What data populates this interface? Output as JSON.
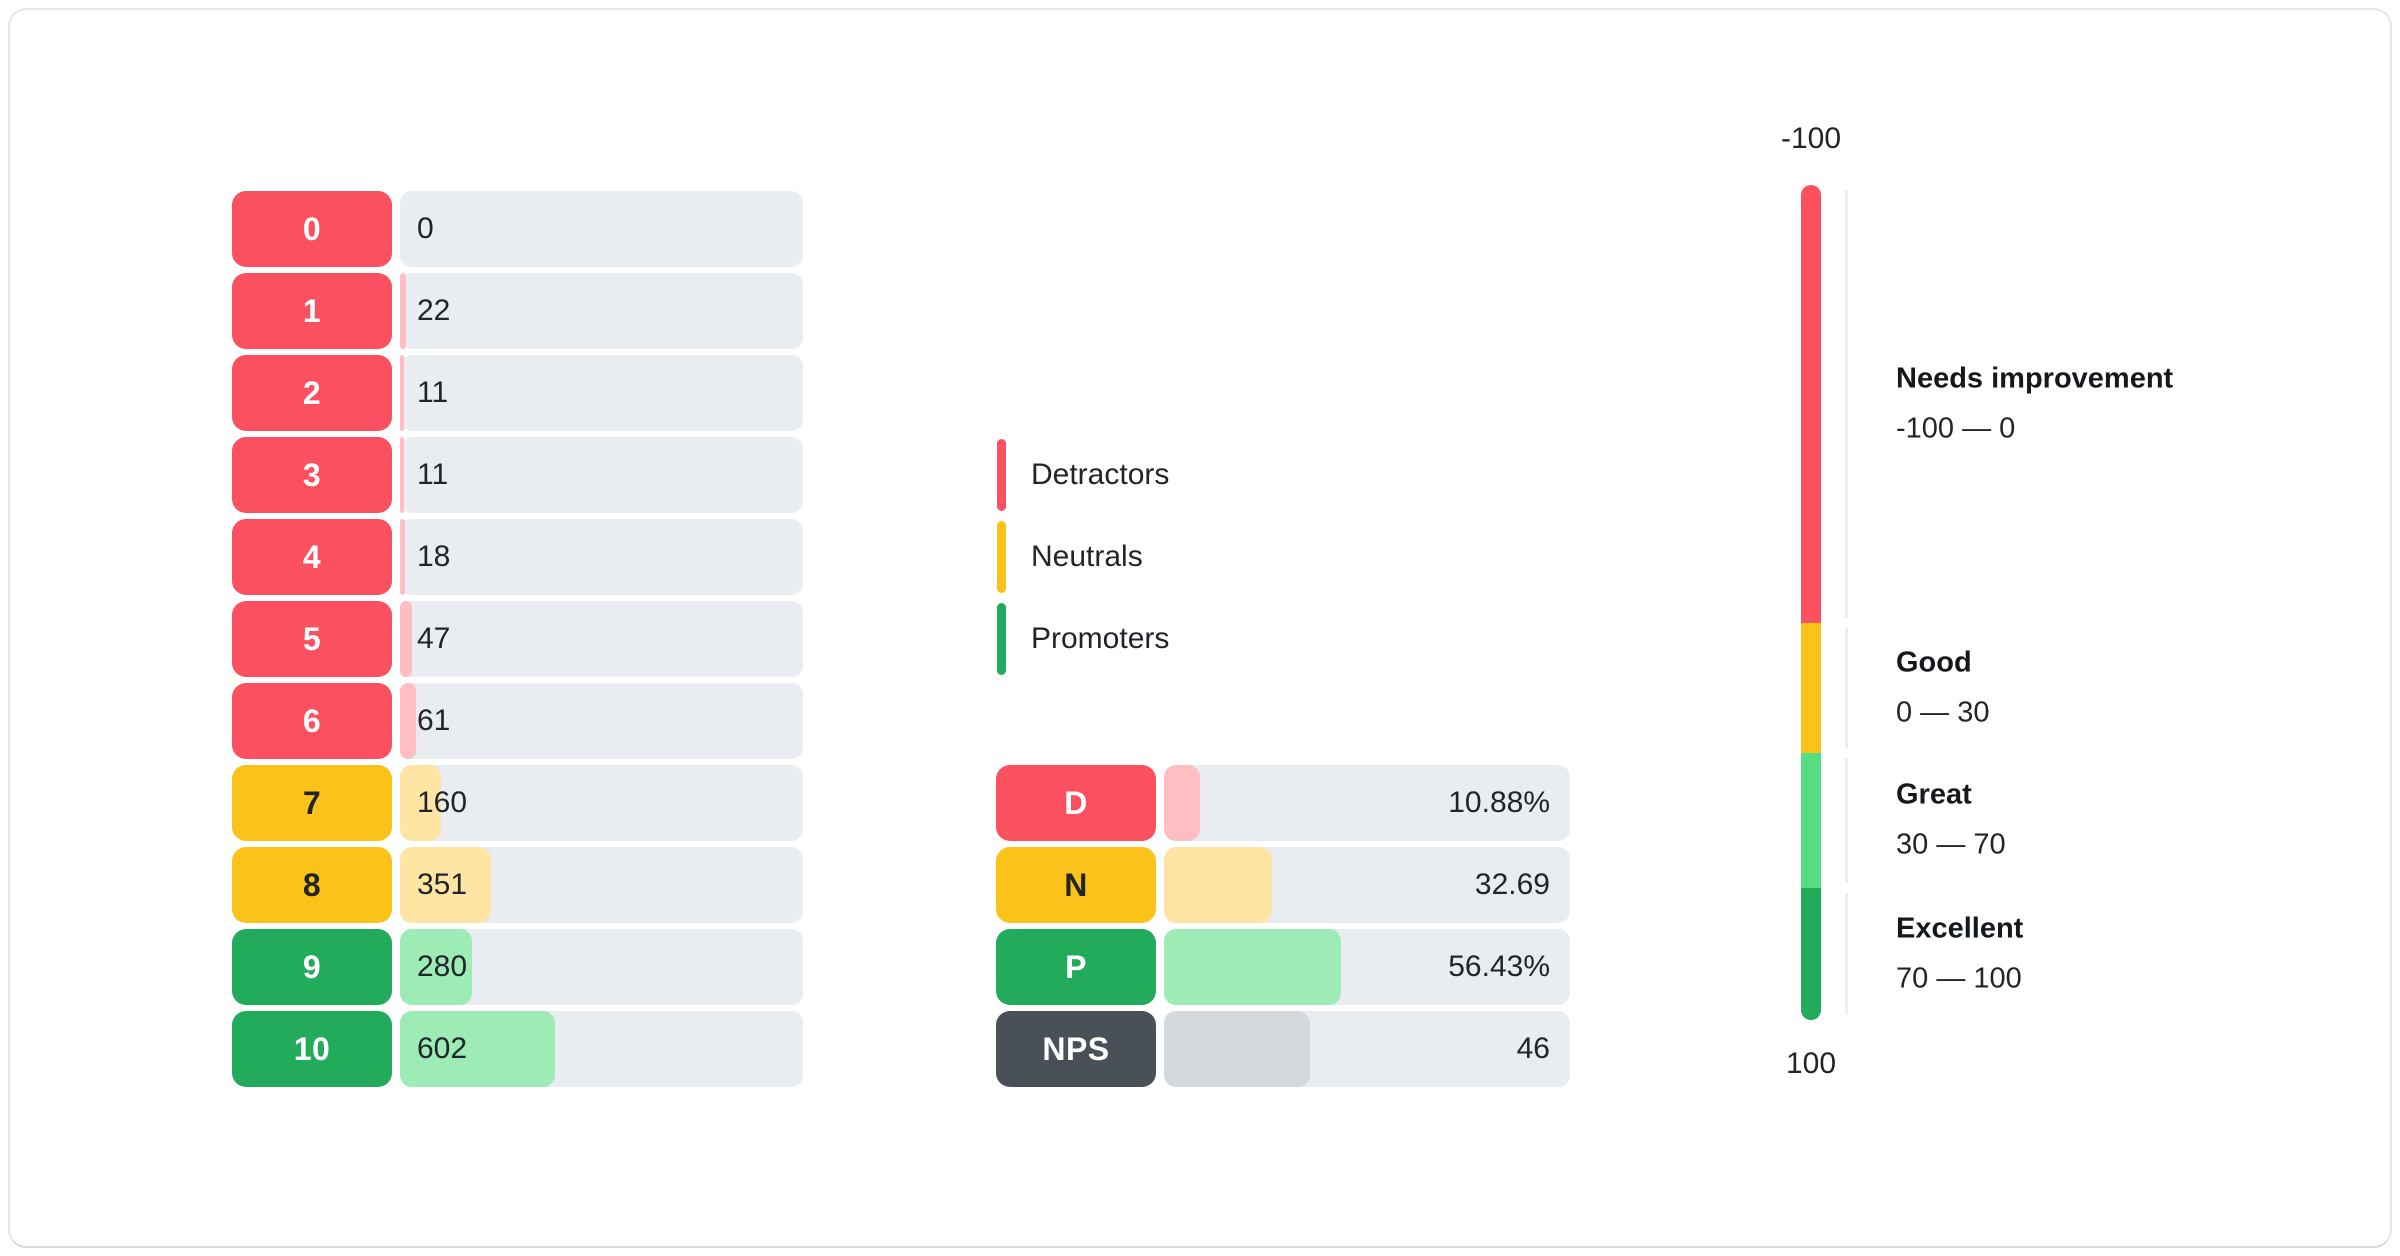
{
  "colors": {
    "red": "#FB5060",
    "yellow": "#FBC31A",
    "green": "#23AB5C",
    "green_bright": "#56DC82",
    "red_light": "#FFBDC4",
    "yellow_light": "#FEE5A4",
    "green_light": "#9DEBB5",
    "slate": "#495057",
    "slate_light": "#D5D9DC",
    "track": "#E9ECF0",
    "line": "#EDEEF0"
  },
  "score_chart": {
    "rows": [
      {
        "label": "0",
        "value": "0",
        "tone": "red",
        "fill_pct": 0
      },
      {
        "label": "1",
        "value": "22",
        "tone": "red",
        "fill_pct": 1.5
      },
      {
        "label": "2",
        "value": "11",
        "tone": "red",
        "fill_pct": 1.0
      },
      {
        "label": "3",
        "value": "11",
        "tone": "red",
        "fill_pct": 1.0
      },
      {
        "label": "4",
        "value": "18",
        "tone": "red",
        "fill_pct": 1.3
      },
      {
        "label": "5",
        "value": "47",
        "tone": "red",
        "fill_pct": 3.0
      },
      {
        "label": "6",
        "value": "61",
        "tone": "red",
        "fill_pct": 3.9
      },
      {
        "label": "7",
        "value": "160",
        "tone": "yellow",
        "fill_pct": 10.2
      },
      {
        "label": "8",
        "value": "351",
        "tone": "yellow",
        "fill_pct": 22.5
      },
      {
        "label": "9",
        "value": "280",
        "tone": "green",
        "fill_pct": 17.9
      },
      {
        "label": "10",
        "value": "602",
        "tone": "green",
        "fill_pct": 38.5
      }
    ]
  },
  "legend": {
    "items": [
      {
        "label": "Detractors",
        "tone": "red"
      },
      {
        "label": "Neutrals",
        "tone": "yellow"
      },
      {
        "label": "Promoters",
        "tone": "green"
      }
    ]
  },
  "summary_chart": {
    "rows": [
      {
        "label": "D",
        "value": "10.88%",
        "tone": "red",
        "fill_pct": 8.8
      },
      {
        "label": "N",
        "value": "32.69",
        "tone": "yellow",
        "fill_pct": 26.5
      },
      {
        "label": "P",
        "value": "56.43%",
        "tone": "green",
        "fill_pct": 43.5
      },
      {
        "label": "NPS",
        "value": "46",
        "tone": "slate",
        "fill_pct": 36.0
      }
    ]
  },
  "gauge": {
    "top_label": "-100",
    "bottom_label": "100",
    "zones": [
      {
        "title": "Needs improvement",
        "range": "-100 — 0",
        "tone": "red",
        "pct": 52.4
      },
      {
        "title": "Good",
        "range": "0 — 30",
        "tone": "yellow",
        "pct": 15.6
      },
      {
        "title": "Great",
        "range": "30 — 70",
        "tone": "green-bright",
        "pct": 16.2
      },
      {
        "title": "Excellent",
        "range": "70 — 100",
        "tone": "green",
        "pct": 15.8
      }
    ]
  },
  "chart_data": [
    {
      "type": "bar",
      "orientation": "horizontal",
      "categories": [
        "0",
        "1",
        "2",
        "3",
        "4",
        "5",
        "6",
        "7",
        "8",
        "9",
        "10"
      ],
      "values": [
        0,
        22,
        11,
        11,
        18,
        47,
        61,
        160,
        351,
        280,
        602
      ],
      "series_groups": {
        "detractors": "scores 0-6",
        "neutrals": "scores 7-8",
        "promoters": "scores 9-10"
      },
      "legend": [
        "Detractors",
        "Neutrals",
        "Promoters"
      ],
      "legend_position": "right"
    },
    {
      "type": "bar",
      "orientation": "horizontal",
      "categories": [
        "D",
        "N",
        "P",
        "NPS"
      ],
      "values": [
        10.88,
        32.69,
        56.43,
        46
      ],
      "value_labels": [
        "10.88%",
        "32.69",
        "56.43%",
        "46"
      ]
    },
    {
      "type": "gauge",
      "axis_range": [
        -100,
        100
      ],
      "tick_labels": [
        "-100",
        "100"
      ],
      "zones": [
        {
          "label": "Needs improvement",
          "range": [
            -100,
            0
          ]
        },
        {
          "label": "Good",
          "range": [
            0,
            30
          ]
        },
        {
          "label": "Great",
          "range": [
            30,
            70
          ]
        },
        {
          "label": "Excellent",
          "range": [
            70,
            100
          ]
        }
      ]
    }
  ]
}
